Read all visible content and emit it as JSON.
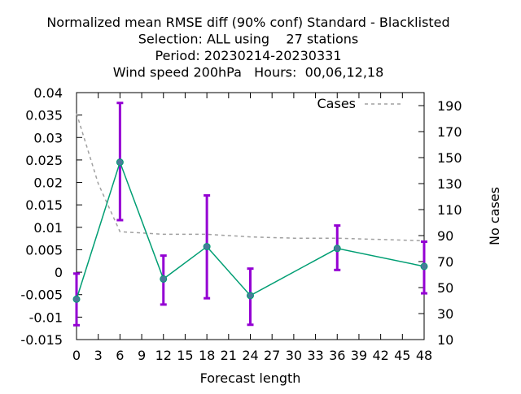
{
  "chart_data": {
    "type": "line",
    "title_lines": [
      "Normalized mean RMSE diff (90% conf) Standard - Blacklisted",
      "Selection: ALL using    27 stations",
      "Period: 20230214-20230331",
      "Wind speed 200hPa   Hours:  00,06,12,18"
    ],
    "xlabel": "Forecast length",
    "ylabel_left": "",
    "ylabel_right": "No cases",
    "xlim": [
      0,
      48
    ],
    "ylim": [
      -0.015,
      0.04
    ],
    "y2lim": [
      10,
      200
    ],
    "x_ticks": [
      0,
      3,
      6,
      9,
      12,
      15,
      18,
      21,
      24,
      27,
      30,
      33,
      36,
      39,
      42,
      45,
      48
    ],
    "y_ticks": [
      -0.015,
      -0.01,
      -0.005,
      0,
      0.005,
      0.01,
      0.015,
      0.02,
      0.025,
      0.03,
      0.035,
      0.04
    ],
    "y_tick_labels": [
      "-0.015",
      "-0.01",
      "-0.005",
      "0",
      "0.005",
      "0.01",
      "0.015",
      "0.02",
      "0.025",
      "0.03",
      "0.035",
      "0.04"
    ],
    "y2_ticks": [
      10,
      30,
      50,
      70,
      90,
      110,
      130,
      150,
      170,
      190
    ],
    "grid": false,
    "legend_position": "top-right",
    "series": [
      {
        "name": "",
        "axis": "left",
        "color": "#009e73",
        "marker_color": "#4a7a9a",
        "x": [
          0,
          6,
          12,
          18,
          24,
          36,
          48
        ],
        "y": [
          -0.006,
          0.0245,
          -0.0015,
          0.0057,
          -0.0052,
          0.0053,
          0.0013
        ],
        "error_low": [
          -0.0118,
          0.0116,
          -0.0072,
          -0.0058,
          -0.0117,
          0.0005,
          -0.0047
        ],
        "error_high": [
          -0.0003,
          0.0377,
          0.0037,
          0.0171,
          0.0008,
          0.0104,
          0.0068
        ],
        "error_color": "#9400d3"
      },
      {
        "name": "Cases",
        "axis": "right",
        "color": "#a0a0a0",
        "style": "dashed",
        "x": [
          0,
          3,
          6,
          12,
          18,
          24,
          30,
          36,
          42,
          48
        ],
        "y": [
          184,
          130,
          93,
          91,
          91,
          89,
          88,
          88,
          87,
          86
        ]
      }
    ]
  }
}
